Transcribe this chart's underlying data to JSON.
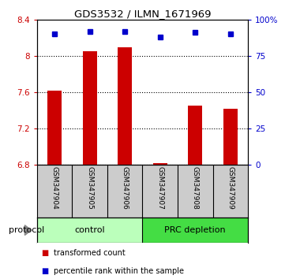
{
  "title": "GDS3532 / ILMN_1671969",
  "samples": [
    "GSM347904",
    "GSM347905",
    "GSM347906",
    "GSM347907",
    "GSM347908",
    "GSM347909"
  ],
  "transformed_counts": [
    7.62,
    8.05,
    8.09,
    6.82,
    7.45,
    7.42
  ],
  "percentile_ranks": [
    90,
    92,
    92,
    88,
    91,
    90
  ],
  "ylim_left": [
    6.8,
    8.4
  ],
  "yticks_left": [
    6.8,
    7.2,
    7.6,
    8.0,
    8.4
  ],
  "ylim_right": [
    0,
    100
  ],
  "yticks_right": [
    0,
    25,
    50,
    75,
    100
  ],
  "yticklabels_right": [
    "0",
    "25",
    "50",
    "75",
    "100%"
  ],
  "bar_color": "#cc0000",
  "dot_color": "#0000cc",
  "groups": [
    {
      "label": "control",
      "indices": [
        0,
        1,
        2
      ],
      "color": "#bbffbb"
    },
    {
      "label": "PRC depletion",
      "indices": [
        3,
        4,
        5
      ],
      "color": "#44dd44"
    }
  ],
  "protocol_label": "protocol",
  "legend_bar_label": "transformed count",
  "legend_dot_label": "percentile rank within the sample",
  "left_tick_color": "#cc0000",
  "right_tick_color": "#0000cc",
  "bg_xtick": "#cccccc"
}
